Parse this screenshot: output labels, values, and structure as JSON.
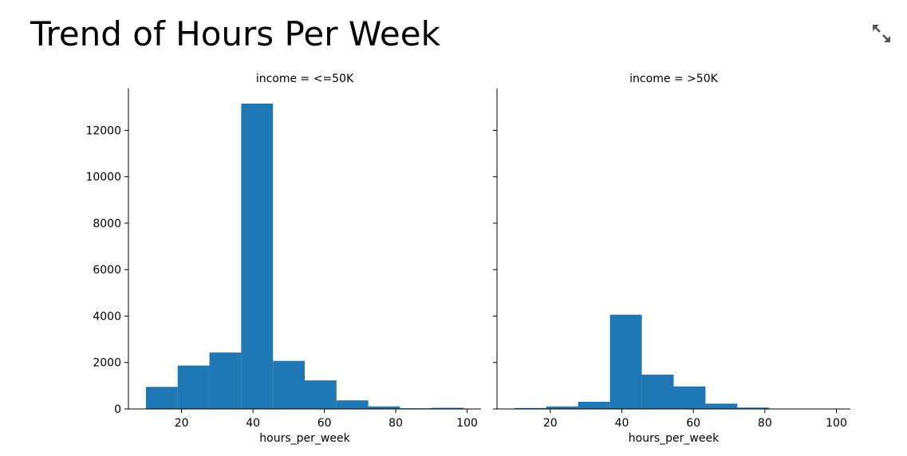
{
  "page": {
    "title": "Trend of Hours Per Week"
  },
  "icons": {
    "expand": "expand-icon"
  },
  "colors": {
    "bar": "#1f77b4",
    "axis": "#000000",
    "icon": "#555555"
  },
  "chart_data": {
    "type": "bar",
    "ylim": [
      0,
      13800
    ],
    "yticks": [
      0,
      2000,
      4000,
      6000,
      8000,
      10000,
      12000
    ],
    "xlim": [
      5.1,
      103.9
    ],
    "xticks": [
      20,
      40,
      60,
      80,
      100
    ],
    "bin_edges": [
      10,
      18.9,
      27.8,
      36.7,
      45.6,
      54.5,
      63.4,
      72.3,
      81.2,
      90.1,
      99
    ],
    "facets": [
      {
        "title": "income = <=50K",
        "xlabel": "hours_per_week",
        "values": [
          950,
          1870,
          2430,
          13150,
          2070,
          1230,
          370,
          110,
          30,
          50
        ]
      },
      {
        "title": "income = >50K",
        "xlabel": "hours_per_week",
        "values": [
          40,
          110,
          310,
          4060,
          1480,
          970,
          230,
          60,
          0,
          0
        ]
      }
    ]
  }
}
